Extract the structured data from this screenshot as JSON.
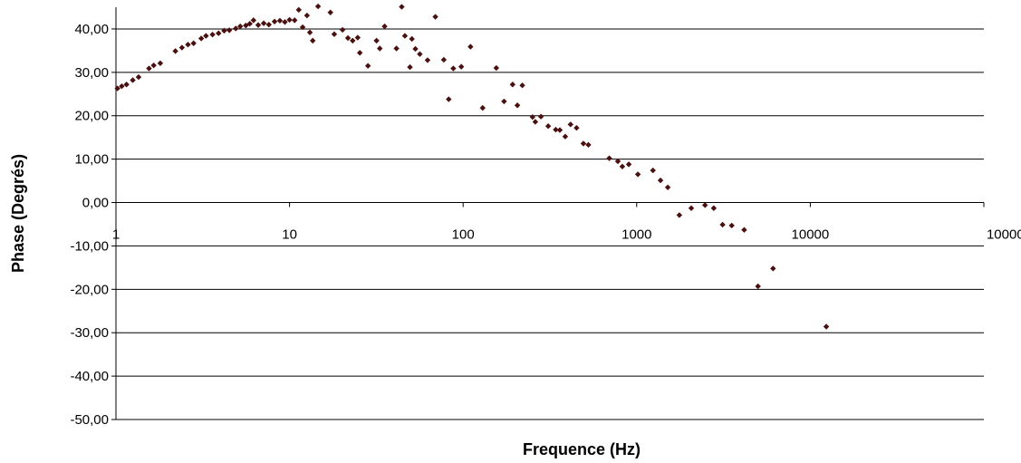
{
  "chart_data": {
    "type": "scatter",
    "title": "",
    "xlabel": "Frequence (Hz)",
    "ylabel": "Phase (Degrés)",
    "x_scale": "log",
    "xlim": [
      1,
      100000
    ],
    "ylim": [
      -50,
      45
    ],
    "grid": "horizontal",
    "legend": "none",
    "marker_color": "#4a1010",
    "x_ticks": [
      {
        "value": 1,
        "label": "1"
      },
      {
        "value": 10,
        "label": "10"
      },
      {
        "value": 100,
        "label": "100"
      },
      {
        "value": 1000,
        "label": "1000"
      },
      {
        "value": 10000,
        "label": "10000"
      },
      {
        "value": 100000,
        "label": "100000"
      }
    ],
    "y_ticks": [
      {
        "value": 40,
        "label": "40,00"
      },
      {
        "value": 30,
        "label": "30,00"
      },
      {
        "value": 20,
        "label": "20,00"
      },
      {
        "value": 10,
        "label": "10,00"
      },
      {
        "value": 0,
        "label": "0,00"
      },
      {
        "value": -10,
        "label": "-10,00"
      },
      {
        "value": -20,
        "label": "-20,00"
      },
      {
        "value": -30,
        "label": "-30,00"
      },
      {
        "value": -40,
        "label": "-40,00"
      },
      {
        "value": -50,
        "label": "-50,00"
      }
    ],
    "points": [
      [
        1.02,
        26.3
      ],
      [
        1.08,
        26.8
      ],
      [
        1.15,
        27.2
      ],
      [
        1.25,
        28.2
      ],
      [
        1.35,
        28.9
      ],
      [
        1.55,
        30.9
      ],
      [
        1.65,
        31.6
      ],
      [
        1.8,
        32.1
      ],
      [
        2.2,
        34.9
      ],
      [
        2.4,
        35.7
      ],
      [
        2.6,
        36.4
      ],
      [
        2.8,
        36.7
      ],
      [
        3.1,
        37.8
      ],
      [
        3.3,
        38.4
      ],
      [
        3.6,
        38.7
      ],
      [
        3.9,
        39.0
      ],
      [
        4.2,
        39.6
      ],
      [
        4.5,
        39.7
      ],
      [
        4.9,
        40.1
      ],
      [
        5.2,
        40.6
      ],
      [
        5.6,
        40.8
      ],
      [
        5.9,
        41.2
      ],
      [
        6.2,
        42.0
      ],
      [
        6.6,
        40.9
      ],
      [
        7.1,
        41.3
      ],
      [
        7.6,
        41.0
      ],
      [
        8.2,
        41.7
      ],
      [
        8.8,
        41.9
      ],
      [
        9.4,
        41.6
      ],
      [
        10.0,
        42.1
      ],
      [
        10.7,
        42.0
      ],
      [
        11.3,
        44.4
      ],
      [
        11.9,
        40.4
      ],
      [
        12.6,
        43.1
      ],
      [
        13.1,
        39.2
      ],
      [
        13.6,
        37.3
      ],
      [
        14.6,
        45.2
      ],
      [
        17.2,
        43.8
      ],
      [
        18.1,
        38.8
      ],
      [
        20.2,
        39.8
      ],
      [
        21.7,
        37.9
      ],
      [
        23.1,
        37.3
      ],
      [
        24.7,
        38.0
      ],
      [
        25.4,
        34.5
      ],
      [
        28.3,
        31.5
      ],
      [
        31.7,
        37.3
      ],
      [
        33.1,
        35.5
      ],
      [
        35.3,
        40.6
      ],
      [
        41.3,
        35.5
      ],
      [
        44.3,
        45.1
      ],
      [
        46.2,
        38.4
      ],
      [
        49.4,
        31.2
      ],
      [
        50.7,
        37.7
      ],
      [
        53.1,
        35.4
      ],
      [
        56.3,
        34.2
      ],
      [
        62.4,
        32.8
      ],
      [
        69.2,
        42.8
      ],
      [
        77.4,
        32.9
      ],
      [
        82.6,
        23.8
      ],
      [
        87.8,
        30.9
      ],
      [
        97.6,
        31.3
      ],
      [
        110.3,
        35.9
      ],
      [
        129.6,
        21.8
      ],
      [
        155.3,
        31.0
      ],
      [
        172.1,
        23.3
      ],
      [
        192.8,
        27.2
      ],
      [
        205.4,
        22.4
      ],
      [
        219.3,
        27.0
      ],
      [
        251.1,
        19.7
      ],
      [
        260.6,
        18.6
      ],
      [
        280.8,
        19.8
      ],
      [
        309.2,
        17.6
      ],
      [
        341.7,
        16.8
      ],
      [
        360.8,
        16.7
      ],
      [
        387.6,
        15.2
      ],
      [
        415.8,
        18.0
      ],
      [
        450.3,
        17.2
      ],
      [
        493.1,
        13.6
      ],
      [
        526.7,
        13.3
      ],
      [
        695.2,
        10.2
      ],
      [
        779.0,
        9.5
      ],
      [
        826.3,
        8.3
      ],
      [
        900.4,
        8.8
      ],
      [
        1016.0,
        6.5
      ],
      [
        1240.4,
        7.4
      ],
      [
        1371.4,
        5.1
      ],
      [
        1510.4,
        3.5
      ],
      [
        1760.5,
        -2.9
      ],
      [
        2062.1,
        -1.3
      ],
      [
        2475.1,
        -0.6
      ],
      [
        2779.4,
        -1.3
      ],
      [
        3125.0,
        -5.1
      ],
      [
        3528.0,
        -5.3
      ],
      [
        4160.9,
        -6.3
      ],
      [
        4996.7,
        -19.3
      ],
      [
        6102.4,
        -15.2
      ],
      [
        12367.0,
        -28.6
      ]
    ]
  }
}
